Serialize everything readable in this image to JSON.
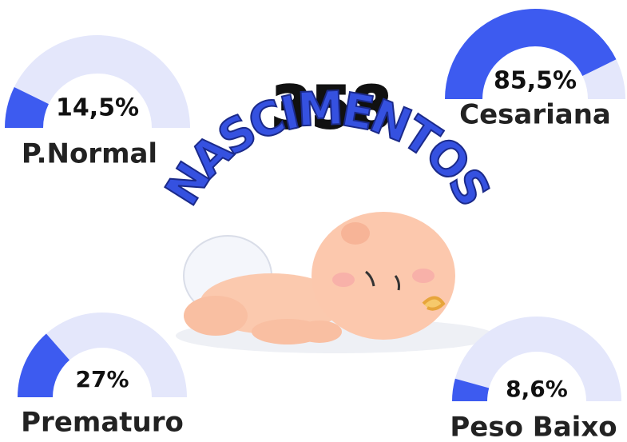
{
  "headline": {
    "count": "358",
    "word": "NASCIMENTOS"
  },
  "chart_data": [
    {
      "type": "gauge",
      "title": "P.Normal",
      "values": [
        14.5
      ],
      "value_labels": [
        "14,5%"
      ],
      "ylim": [
        0,
        100
      ],
      "color": "#3d5bf0"
    },
    {
      "type": "gauge",
      "title": "Cesariana",
      "values": [
        85.5
      ],
      "value_labels": [
        "85,5%"
      ],
      "ylim": [
        0,
        100
      ],
      "color": "#3d5bf0"
    },
    {
      "type": "gauge",
      "title": "Prematuro",
      "values": [
        27
      ],
      "value_labels": [
        "27%"
      ],
      "ylim": [
        0,
        100
      ],
      "color": "#3d5bf0"
    },
    {
      "type": "gauge",
      "title": "Peso Baixo",
      "values": [
        8.6
      ],
      "value_labels": [
        "8,6%"
      ],
      "ylim": [
        0,
        100
      ],
      "color": "#3d5bf0"
    }
  ]
}
